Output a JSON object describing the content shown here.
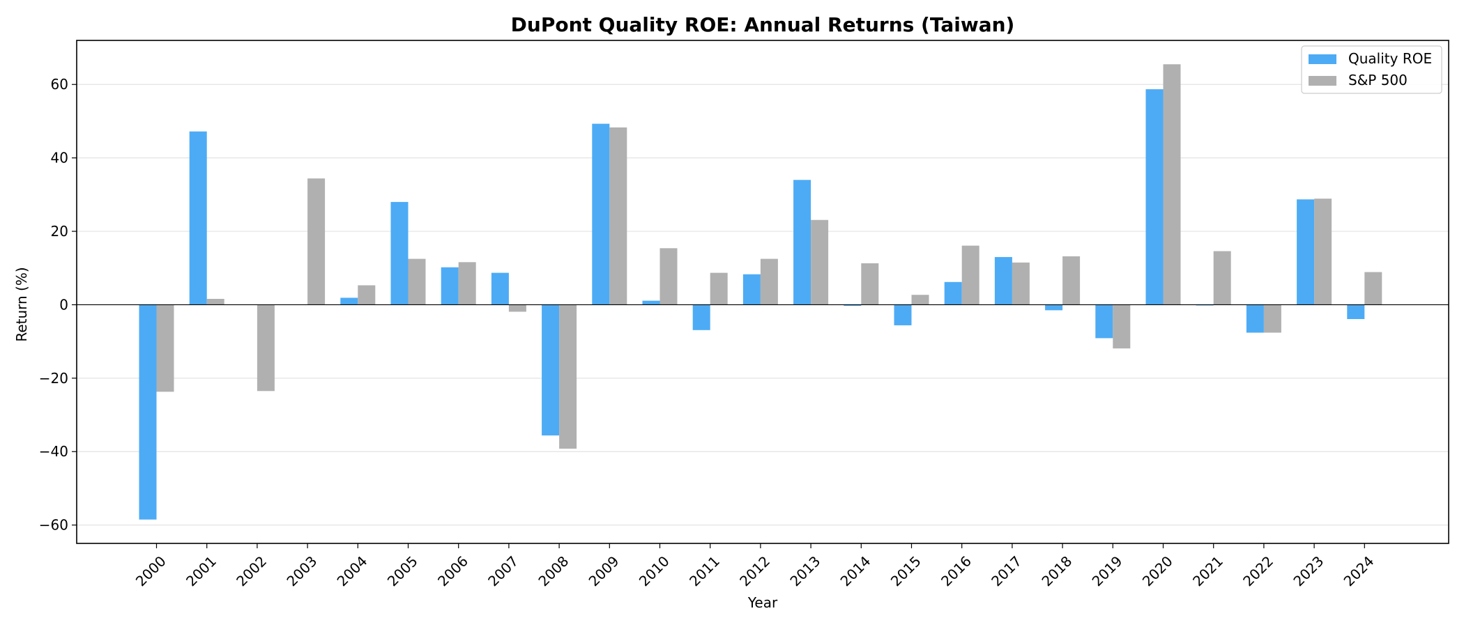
{
  "chart_data": {
    "type": "bar",
    "title": "DuPont Quality ROE: Annual Returns (Taiwan)",
    "xlabel": "Year",
    "ylabel": "Return (%)",
    "ylim": [
      -65,
      72
    ],
    "yticks": [
      -60,
      -40,
      -20,
      0,
      20,
      40,
      60
    ],
    "grid": "horizontal",
    "legend_position": "top-right",
    "categories": [
      "2000",
      "2001",
      "2002",
      "2003",
      "2004",
      "2005",
      "2006",
      "2007",
      "2008",
      "2009",
      "2010",
      "2011",
      "2012",
      "2013",
      "2014",
      "2015",
      "2016",
      "2017",
      "2018",
      "2019",
      "2020",
      "2021",
      "2022",
      "2023",
      "2024"
    ],
    "series": [
      {
        "name": "Quality ROE",
        "color": "#4DABF5",
        "values": [
          -58.5,
          47.2,
          0,
          0,
          1.9,
          28.0,
          10.2,
          8.7,
          -35.6,
          49.3,
          1.1,
          -6.9,
          8.3,
          34.0,
          -0.3,
          -5.6,
          6.2,
          13.0,
          -1.5,
          -9.1,
          58.7,
          -0.2,
          -7.6,
          28.7,
          -3.9
        ]
      },
      {
        "name": "S&P 500",
        "color": "#B0B0B0",
        "values": [
          -23.7,
          1.6,
          -23.5,
          34.4,
          5.3,
          12.5,
          11.6,
          -1.9,
          -39.2,
          48.3,
          15.4,
          8.7,
          12.5,
          23.1,
          11.3,
          2.7,
          16.1,
          11.5,
          13.2,
          -11.9,
          65.5,
          14.6,
          -7.6,
          28.9,
          8.9
        ]
      }
    ]
  }
}
